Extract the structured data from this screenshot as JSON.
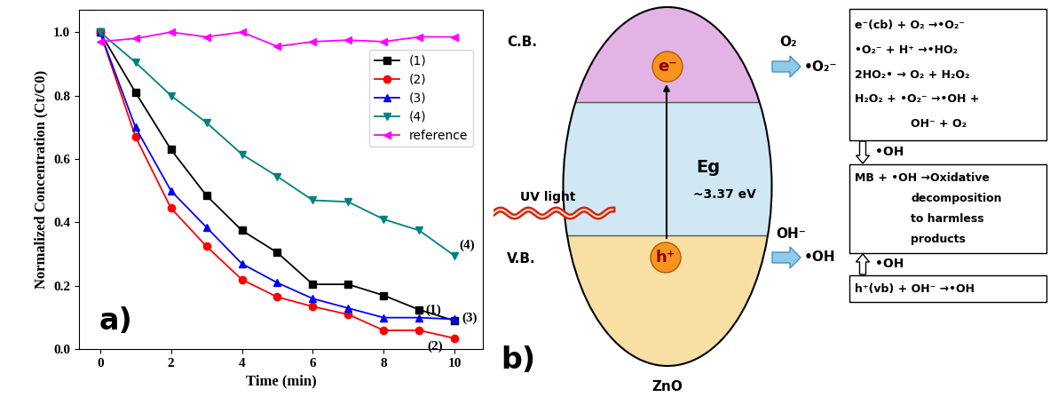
{
  "chart_data": {
    "type": "line",
    "x": [
      0,
      1,
      2,
      3,
      4,
      5,
      6,
      7,
      8,
      9,
      10
    ],
    "series": [
      {
        "name": "(1)",
        "color": "#000000",
        "marker": "square",
        "values": [
          1.0,
          0.81,
          0.63,
          0.485,
          0.375,
          0.305,
          0.205,
          0.205,
          0.17,
          0.125,
          0.09
        ]
      },
      {
        "name": "(2)",
        "color": "#ff0000",
        "marker": "circle",
        "values": [
          1.0,
          0.67,
          0.445,
          0.325,
          0.22,
          0.165,
          0.135,
          0.11,
          0.06,
          0.06,
          0.035
        ]
      },
      {
        "name": "(3)",
        "color": "#0000ff",
        "marker": "triangle_up",
        "values": [
          1.0,
          0.7,
          0.5,
          0.385,
          0.27,
          0.21,
          0.16,
          0.13,
          0.1,
          0.1,
          0.095
        ]
      },
      {
        "name": "(4)",
        "color": "#008080",
        "marker": "triangle_down",
        "values": [
          1.0,
          0.905,
          0.8,
          0.715,
          0.615,
          0.545,
          0.47,
          0.465,
          0.41,
          0.375,
          0.295
        ]
      },
      {
        "name": "reference",
        "color": "#ff00ff",
        "marker": "triangle_left",
        "values": [
          0.97,
          0.98,
          1.0,
          0.985,
          1.0,
          0.955,
          0.97,
          0.975,
          0.97,
          0.985,
          0.985
        ]
      }
    ],
    "x_label": "Time (min)",
    "y_label": "Normalized Concentration (Ct/C0)",
    "xlim": [
      -0.6,
      10.8
    ],
    "xticks": [
      0,
      2,
      4,
      6,
      8,
      10
    ],
    "ylim": [
      0,
      1.07
    ],
    "yticks": [
      {
        "value": 0,
        "label": "0.0"
      },
      0.2,
      0.4,
      0.6,
      0.8,
      {
        "value": 1,
        "label": "1.0"
      }
    ],
    "legend": "upper right",
    "grid": false,
    "annotations": [
      "a)"
    ]
  },
  "diagram": {
    "label": "b)",
    "material": "ZnO",
    "conduction_band": "C.B.",
    "valence_band": "V.B.",
    "electron": "e⁻",
    "hole": "h⁺",
    "band_gap_symbol": "Eg",
    "band_gap_value": "~3.37 eV",
    "light": "UV light",
    "cb_reactant": "O₂",
    "cb_product": "•O₂⁻",
    "vb_reactant": "OH⁻",
    "vb_product": "•OH",
    "reaction_boxes": [
      [
        "e⁻(cb) + O₂ →•O₂⁻",
        "•O₂⁻ + H⁺ →•HO₂",
        "2HO₂• → O₂ + H₂O₂",
        "H₂O₂ + •O₂⁻ →•OH +",
        "OH⁻ + O₂"
      ],
      [
        "MB + •OH →Oxidative",
        "decomposition",
        "to harmless",
        "products"
      ],
      [
        "h⁺(vb) + OH⁻ →•OH"
      ]
    ],
    "arrow_labels": [
      "•OH",
      "•OH"
    ]
  }
}
